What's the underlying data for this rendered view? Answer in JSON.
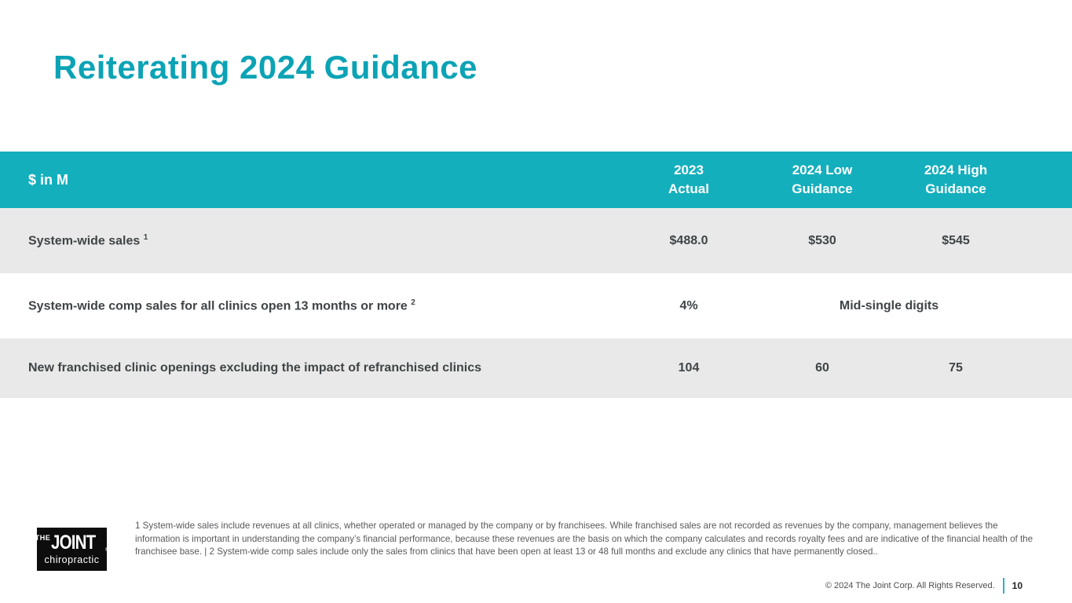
{
  "slide": {
    "title": "Reiterating 2024 Guidance"
  },
  "table": {
    "unit_label": "$ in M",
    "columns": [
      {
        "line1": "2023",
        "line2": "Actual"
      },
      {
        "line1": "2024 Low",
        "line2": "Guidance"
      },
      {
        "line1": "2024 High",
        "line2": "Guidance"
      }
    ],
    "rows": [
      {
        "label": "System-wide sales",
        "footnote_ref": "1",
        "values": [
          "$488.0",
          "$530",
          "$545"
        ]
      },
      {
        "label": "System-wide comp sales for all clinics open 13 months or more",
        "footnote_ref": "2",
        "values": [
          "4%",
          "Mid-single digits"
        ]
      },
      {
        "label": "New franchised clinic openings excluding the impact of refranchised clinics",
        "values": [
          "104",
          "60",
          "75"
        ]
      }
    ]
  },
  "footnote_text": "1 System-wide sales include revenues at all clinics, whether operated or managed by the company or by franchisees. While franchised sales are not recorded as revenues by the company, management believes the information is important in understanding the company’s financial performance, because these revenues are the basis on which the company calculates and records royalty fees and are indicative of the financial health of the franchisee base. | 2 System-wide comp sales include only the sales from clinics that have been open at least 13 or 48 full months and exclude any clinics that have permanently closed..",
  "logo": {
    "the": "THE",
    "joint": "JOINT",
    "reg": "®",
    "chiropractic": "chiropractic"
  },
  "footer": {
    "copyright": "© 2024 The Joint Corp. All Rights Reserved.",
    "page_number": "10"
  },
  "colors": {
    "title_teal": "#0ba3b5",
    "header_teal": "#14afbd",
    "row_gray": "#e9e9e9",
    "body_text": "#3f4447",
    "footnote_gray": "#58595b",
    "divider_teal": "#2bb5c4"
  }
}
